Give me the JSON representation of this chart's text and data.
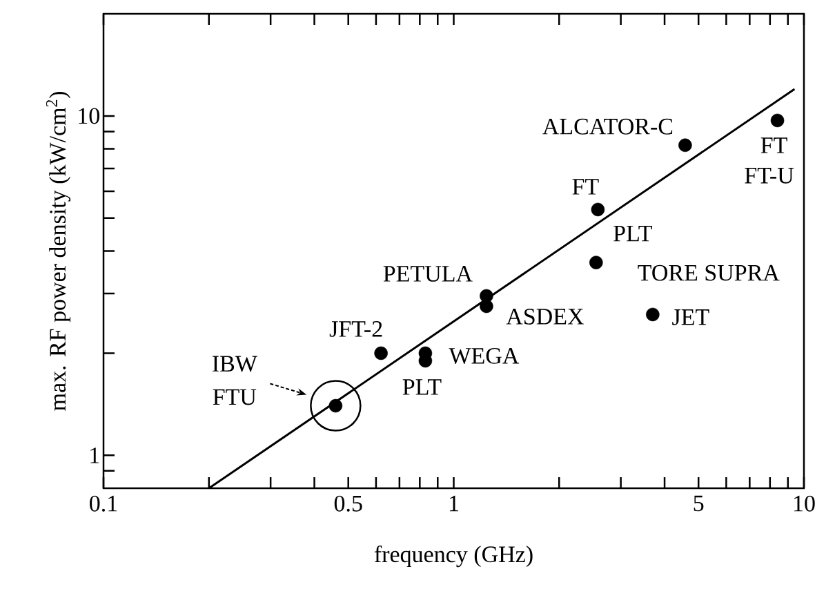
{
  "chart_data": {
    "type": "scatter",
    "xlabel": "frequency (GHz)",
    "ylabel": "max. RF power density (kW/cm$^{2}$)",
    "log": "xy",
    "marker": "circle",
    "xlim": [
      0.1,
      10
    ],
    "ylim": [
      0.8,
      20
    ],
    "xticks": [
      0.1,
      {
        "value": 0.2,
        "label": null
      },
      {
        "value": 0.3,
        "label": null
      },
      {
        "value": 0.4,
        "label": null
      },
      0.5,
      {
        "value": 0.6,
        "label": null
      },
      {
        "value": 0.7,
        "label": null
      },
      {
        "value": 0.8,
        "label": null
      },
      {
        "value": 0.9,
        "label": null
      },
      1,
      {
        "value": 2,
        "label": null
      },
      {
        "value": 3,
        "label": null
      },
      {
        "value": 4,
        "label": null
      },
      5,
      {
        "value": 6,
        "label": null
      },
      {
        "value": 7,
        "label": null
      },
      {
        "value": 8,
        "label": null
      },
      {
        "value": 9,
        "label": null
      },
      10
    ],
    "yticks": [
      {
        "value": 0.9,
        "label": null
      },
      1,
      {
        "value": 2,
        "label": null
      },
      {
        "value": 3,
        "label": null
      },
      {
        "value": 4,
        "label": null
      },
      {
        "value": 5,
        "label": null
      },
      {
        "value": 6,
        "label": null
      },
      {
        "value": 7,
        "label": null
      },
      {
        "value": 8,
        "label": null
      },
      {
        "value": 9,
        "label": null
      },
      10
    ],
    "series": [
      {
        "color": "#000000",
        "x": [
          0.46,
          0.62,
          0.83,
          0.83,
          1.24,
          1.24,
          4.58,
          2.58,
          2.55,
          3.7,
          8.4
        ],
        "values": [
          1.4,
          2.0,
          2.0,
          1.9,
          2.95,
          2.75,
          8.2,
          5.3,
          3.7,
          2.6,
          9.7
        ]
      },
      {
        "type": "line",
        "marker": "none",
        "color": "#000000",
        "x": [
          0.2,
          9.4
        ],
        "values": [
          0.8,
          12
        ]
      }
    ],
    "annotations": [
      "IBW",
      "FTU",
      {
        "text": "JFT-2",
        "x": 0.62,
        "y": 2.0
      },
      {
        "text": "WEGA",
        "x": 0.83,
        "y": 2.0
      },
      {
        "text": "PLT",
        "x": 0.83,
        "y": 1.9
      },
      {
        "text": "PETULA",
        "x": 1.24,
        "y": 2.95
      },
      {
        "text": "ASDEX",
        "x": 1.24,
        "y": 2.75
      },
      {
        "text": "ALCATOR-C",
        "x": 4.58,
        "y": 8.2
      },
      {
        "text": "FT",
        "x": 2.58,
        "y": 5.3
      },
      {
        "text": "PLT",
        "x": 2.55,
        "y": 3.7
      },
      {
        "text": "TORE SUPRA",
        "x": 2.55,
        "y": 3.7
      },
      {
        "text": "JET",
        "x": 3.7,
        "y": 2.6
      },
      {
        "text": "FT",
        "x": 8.4,
        "y": 9.7
      },
      {
        "text": "FT-U",
        "x": 8.4,
        "y": 9.7
      }
    ]
  }
}
